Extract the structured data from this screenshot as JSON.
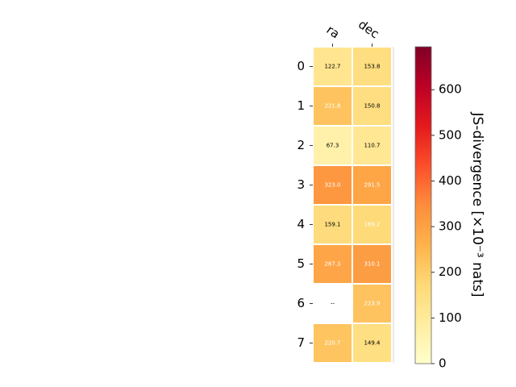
{
  "chart_data": {
    "type": "heatmap",
    "columns": [
      "ra",
      "dec"
    ],
    "rows": [
      "0",
      "1",
      "2",
      "3",
      "4",
      "5",
      "6",
      "7"
    ],
    "values": [
      [
        122.7,
        153.8
      ],
      [
        221.8,
        150.8
      ],
      [
        67.3,
        110.7
      ],
      [
        323.0,
        291.5
      ],
      [
        159.1,
        169.2
      ],
      [
        287.3,
        310.1
      ],
      [
        null,
        223.9
      ],
      [
        220.7,
        149.4
      ]
    ],
    "cell_labels": [
      [
        "122.7",
        "153.8"
      ],
      [
        "221.8",
        "150.8"
      ],
      [
        "67.3",
        "110.7"
      ],
      [
        "323.0",
        "291.5"
      ],
      [
        "159.1",
        "169.2"
      ],
      [
        "287.3",
        "310.1"
      ],
      [
        "--",
        "223.9"
      ],
      [
        "220.7",
        "149.4"
      ]
    ],
    "colorbar": {
      "label": "JS-divergence [×10⁻³ nats]",
      "range": [
        0,
        694
      ],
      "ticks": [
        "0",
        "100",
        "200",
        "300",
        "400",
        "500",
        "600"
      ],
      "colormap": "YlOrRd"
    },
    "grid": false,
    "legend": "none"
  }
}
